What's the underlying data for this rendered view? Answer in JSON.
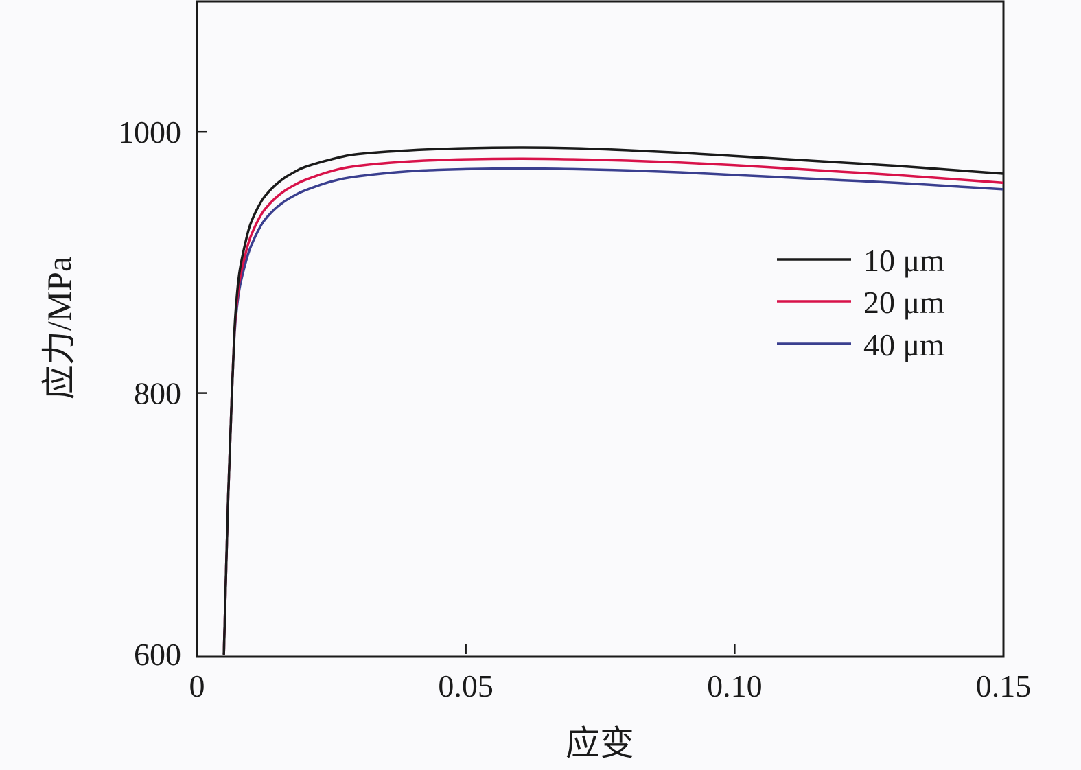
{
  "chart_data": {
    "type": "line",
    "xlabel": "应变",
    "ylabel": "应力/MPa",
    "xlim": [
      0,
      0.15
    ],
    "ylim": [
      600,
      1100
    ],
    "xticks": [
      {
        "value": 0,
        "label": "0"
      },
      {
        "value": 0.05,
        "label": "0.05"
      },
      {
        "value": 0.1,
        "label": "0.10"
      },
      {
        "value": 0.15,
        "label": "0.15"
      }
    ],
    "yticks": [
      {
        "value": 600,
        "label": "600"
      },
      {
        "value": 800,
        "label": "800"
      },
      {
        "value": 1000,
        "label": "1000"
      }
    ],
    "grid": false,
    "legend_position": "right",
    "series": [
      {
        "name": "10 μm",
        "color": "#1a1a1a",
        "x": [
          0.005,
          0.0058,
          0.0065,
          0.007,
          0.0075,
          0.008,
          0.009,
          0.01,
          0.012,
          0.014,
          0.016,
          0.018,
          0.02,
          0.025,
          0.03,
          0.04,
          0.05,
          0.06,
          0.07,
          0.08,
          0.09,
          0.1,
          0.11,
          0.12,
          0.13,
          0.14,
          0.15
        ],
        "y": [
          600,
          720,
          800,
          850,
          878,
          895,
          915,
          930,
          947,
          957,
          964,
          969,
          973,
          979,
          983,
          986,
          987.5,
          988,
          987.5,
          986,
          984,
          981.5,
          979,
          976.5,
          974,
          971,
          968
        ]
      },
      {
        "name": "20 μm",
        "color": "#d8124a",
        "x": [
          0.005,
          0.0058,
          0.0065,
          0.007,
          0.0075,
          0.008,
          0.009,
          0.01,
          0.012,
          0.014,
          0.016,
          0.018,
          0.02,
          0.025,
          0.03,
          0.04,
          0.05,
          0.06,
          0.07,
          0.08,
          0.09,
          0.1,
          0.11,
          0.12,
          0.13,
          0.14,
          0.15
        ],
        "y": [
          600,
          720,
          800,
          848,
          872,
          888,
          906,
          920,
          937,
          947,
          954,
          959,
          963,
          970,
          974,
          977.5,
          979,
          979.5,
          979,
          978,
          976.5,
          974.5,
          972,
          969.5,
          967,
          964,
          961
        ]
      },
      {
        "name": "40 μm",
        "color": "#3a3f8f",
        "x": [
          0.005,
          0.0058,
          0.0065,
          0.007,
          0.0075,
          0.008,
          0.009,
          0.01,
          0.012,
          0.014,
          0.016,
          0.018,
          0.02,
          0.025,
          0.03,
          0.04,
          0.05,
          0.06,
          0.07,
          0.08,
          0.09,
          0.1,
          0.11,
          0.12,
          0.13,
          0.14,
          0.15
        ],
        "y": [
          600,
          720,
          800,
          846,
          868,
          882,
          899,
          912,
          929,
          939,
          946,
          951,
          955,
          962,
          966,
          970,
          971.5,
          972,
          971.5,
          970.5,
          969,
          967,
          965,
          963,
          961,
          958.5,
          956
        ]
      }
    ]
  }
}
